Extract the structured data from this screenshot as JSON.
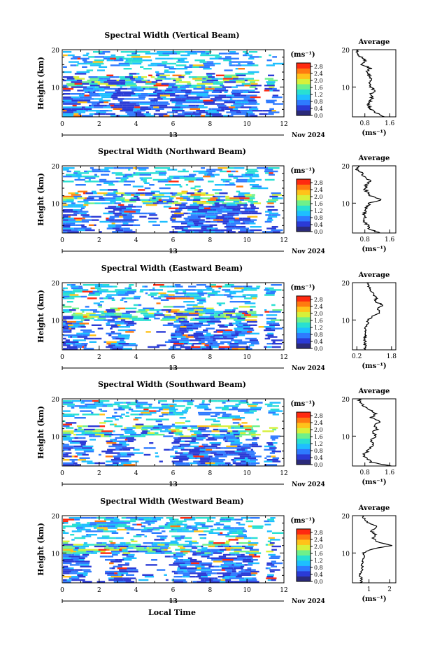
{
  "chart_data": {
    "type": "heatmap",
    "common": {
      "xlabel": "Local Time",
      "x_ticks": [
        0,
        2,
        4,
        6,
        8,
        10,
        12
      ],
      "xlim": [
        0,
        12
      ],
      "ylabel": "Height (km)",
      "y_ticks": [
        10,
        20
      ],
      "ylim": [
        2,
        20
      ],
      "date_day": "13",
      "date_label": "Nov 2024",
      "colorbar_unit": "(ms⁻¹)",
      "colorbar_ticks": [
        "0.0",
        "0.4",
        "0.8",
        "1.2",
        "1.6",
        "2.0",
        "2.4",
        "2.8"
      ],
      "colorbar_range": [
        0,
        3
      ],
      "colors": [
        "#2b2a7a",
        "#2b3bd6",
        "#2f7bff",
        "#1fbfff",
        "#29e0d2",
        "#6ef08a",
        "#d7f03a",
        "#ffc21a",
        "#ff7a10",
        "#ff2a10"
      ],
      "avg_title": "Average",
      "avg_xlabel": "(ms⁻¹)",
      "avg_y_ticks": [
        10,
        20
      ]
    },
    "panels": [
      {
        "title": "Spectral Width (Vertical Beam)",
        "avg_x_ticks": [
          "0.8",
          "1.6"
        ],
        "avg_xlim": [
          0.4,
          1.8
        ],
        "avg_profile": [
          [
            2,
            1.45
          ],
          [
            3,
            1.15
          ],
          [
            4,
            1.0
          ],
          [
            5,
            0.92
          ],
          [
            6,
            0.95
          ],
          [
            7,
            1.05
          ],
          [
            8,
            0.97
          ],
          [
            9,
            1.12
          ],
          [
            10,
            1.0
          ],
          [
            11,
            0.92
          ],
          [
            12,
            1.05
          ],
          [
            13,
            0.95
          ],
          [
            14,
            0.85
          ],
          [
            15,
            0.98
          ],
          [
            16,
            0.72
          ],
          [
            17,
            0.85
          ],
          [
            18,
            0.68
          ],
          [
            19,
            0.55
          ],
          [
            20,
            0.6
          ]
        ]
      },
      {
        "title": "Spectral Width (Northward Beam)",
        "avg_x_ticks": [
          "0.8",
          "1.6"
        ],
        "avg_xlim": [
          0.4,
          1.8
        ],
        "avg_profile": [
          [
            2,
            1.25
          ],
          [
            3,
            0.95
          ],
          [
            4,
            0.9
          ],
          [
            5,
            0.75
          ],
          [
            6,
            0.8
          ],
          [
            7,
            0.78
          ],
          [
            8,
            0.82
          ],
          [
            9,
            0.85
          ],
          [
            10,
            0.95
          ],
          [
            11,
            1.35
          ],
          [
            12,
            1.0
          ],
          [
            13,
            0.85
          ],
          [
            14,
            0.8
          ],
          [
            15,
            0.85
          ],
          [
            16,
            0.95
          ],
          [
            17,
            0.78
          ],
          [
            18,
            0.7
          ],
          [
            19,
            0.55
          ],
          [
            20,
            0.58
          ]
        ]
      },
      {
        "title": "Spectral Width (Eastward Beam)",
        "avg_x_ticks": [
          "0.2",
          "1.8"
        ],
        "avg_xlim": [
          0.0,
          2.0
        ],
        "avg_profile": [
          [
            2,
            0.55
          ],
          [
            3,
            0.58
          ],
          [
            4,
            0.6
          ],
          [
            5,
            0.55
          ],
          [
            6,
            0.62
          ],
          [
            7,
            0.6
          ],
          [
            8,
            0.6
          ],
          [
            9,
            0.7
          ],
          [
            10,
            0.72
          ],
          [
            11,
            0.95
          ],
          [
            12,
            1.3
          ],
          [
            13,
            1.15
          ],
          [
            14,
            1.4
          ],
          [
            15,
            1.05
          ],
          [
            16,
            1.1
          ],
          [
            17,
            0.95
          ],
          [
            18,
            0.85
          ],
          [
            19,
            0.75
          ],
          [
            20,
            0.65
          ]
        ]
      },
      {
        "title": "Spectral Width (Southward Beam)",
        "avg_x_ticks": [
          "0.8",
          "1.6"
        ],
        "avg_xlim": [
          0.4,
          1.8
        ],
        "avg_profile": [
          [
            2,
            1.6
          ],
          [
            3,
            1.0
          ],
          [
            4,
            0.9
          ],
          [
            5,
            0.75
          ],
          [
            6,
            0.9
          ],
          [
            7,
            1.0
          ],
          [
            8,
            1.1
          ],
          [
            9,
            0.95
          ],
          [
            10,
            1.15
          ],
          [
            11,
            1.05
          ],
          [
            12,
            1.2
          ],
          [
            13,
            1.1
          ],
          [
            14,
            1.3
          ],
          [
            15,
            1.0
          ],
          [
            16,
            1.15
          ],
          [
            17,
            0.95
          ],
          [
            18,
            0.8
          ],
          [
            19,
            0.65
          ],
          [
            20,
            0.6
          ]
        ]
      },
      {
        "title": "Spectral Width (Westward Beam)",
        "avg_x_ticks": [
          "1",
          "2"
        ],
        "avg_xlim": [
          0.2,
          2.3
        ],
        "avg_profile": [
          [
            2,
            0.6
          ],
          [
            3,
            0.65
          ],
          [
            4,
            0.55
          ],
          [
            5,
            0.6
          ],
          [
            6,
            0.7
          ],
          [
            7,
            0.65
          ],
          [
            8,
            0.7
          ],
          [
            9,
            0.8
          ],
          [
            10,
            0.75
          ],
          [
            11,
            1.1
          ],
          [
            12,
            2.1
          ],
          [
            13,
            1.4
          ],
          [
            14,
            1.2
          ],
          [
            15,
            1.3
          ],
          [
            16,
            1.1
          ],
          [
            17,
            1.4
          ],
          [
            18,
            1.0
          ],
          [
            19,
            0.8
          ],
          [
            20,
            0.7
          ]
        ]
      }
    ]
  }
}
